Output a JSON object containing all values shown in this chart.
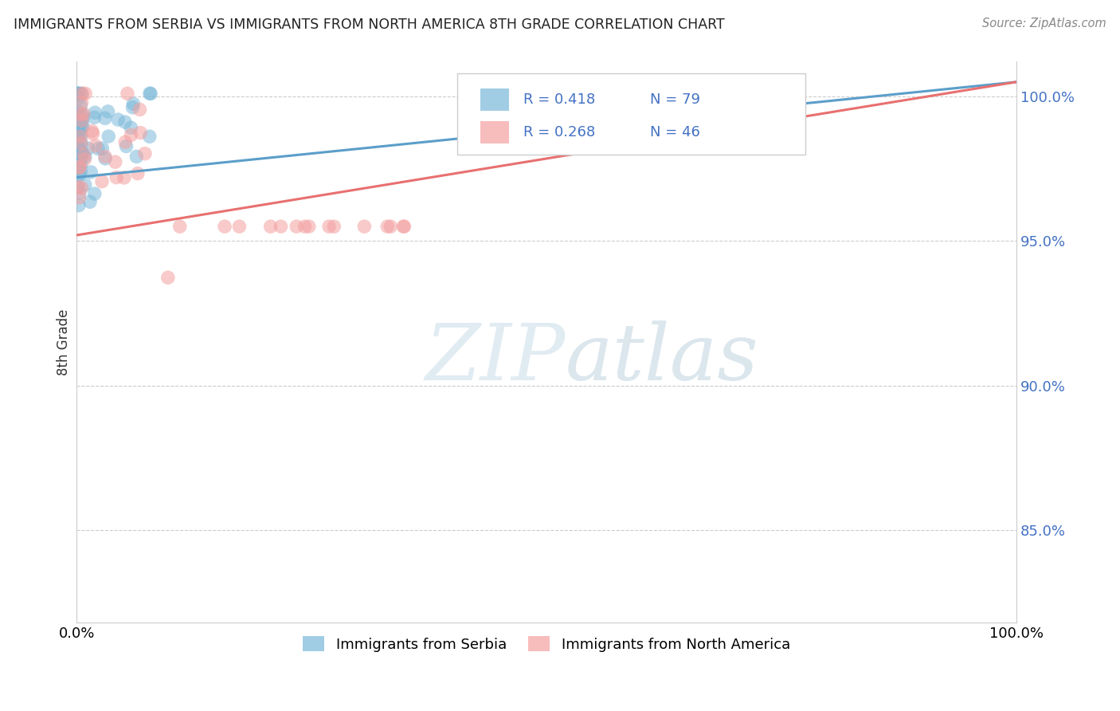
{
  "title": "IMMIGRANTS FROM SERBIA VS IMMIGRANTS FROM NORTH AMERICA 8TH GRADE CORRELATION CHART",
  "source": "Source: ZipAtlas.com",
  "ylabel": "8th Grade",
  "legend_label1": "Immigrants from Serbia",
  "legend_label2": "Immigrants from North America",
  "R1": 0.418,
  "N1": 79,
  "R2": 0.268,
  "N2": 46,
  "color1": "#7ab8d9",
  "color2": "#f4a0a0",
  "color1_line": "#5b9ec9",
  "color2_line": "#e87070",
  "ytick_vals": [
    0.85,
    0.9,
    0.95,
    1.0
  ],
  "ytick_labels": [
    "85.0%",
    "90.0%",
    "95.0%",
    "100.0%"
  ],
  "xlim": [
    0.0,
    1.0
  ],
  "ylim": [
    0.818,
    1.012
  ],
  "trendline1": [
    0.0,
    0.972,
    1.0,
    1.005
  ],
  "trendline2": [
    0.0,
    0.952,
    1.0,
    1.005
  ],
  "watermark_zip": "ZIP",
  "watermark_atlas": "atlas",
  "background": "#ffffff"
}
